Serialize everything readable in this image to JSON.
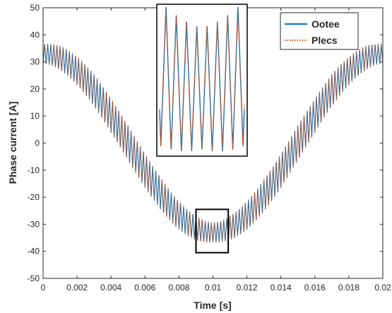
{
  "chart_data": {
    "type": "line",
    "title": "",
    "xlabel": "Time [s]",
    "ylabel": "Phase current [A]",
    "xlim": [
      0,
      0.02
    ],
    "ylim": [
      -50,
      50
    ],
    "xticks": [
      0,
      0.002,
      0.004,
      0.006,
      0.008,
      0.01,
      0.012,
      0.014,
      0.016,
      0.018,
      0.02
    ],
    "xtick_labels": [
      "0",
      "0.002",
      "0.004",
      "0.006",
      "0.008",
      "0.01",
      "0.012",
      "0.014",
      "0.016",
      "0.018",
      "0.02"
    ],
    "yticks": [
      -50,
      -40,
      -30,
      -20,
      -10,
      0,
      10,
      20,
      30,
      40,
      50
    ],
    "ytick_labels": [
      "-50",
      "-40",
      "-30",
      "-20",
      "-10",
      "0",
      "10",
      "20",
      "30",
      "40",
      "50"
    ],
    "grid": false,
    "legend": "top-right",
    "signal": {
      "fundamental_amplitude": 33,
      "fundamental_period": 0.02,
      "ripple_amplitude": 6.5,
      "ripple_frequency": 5500
    },
    "series": [
      {
        "name": "Ootee",
        "color": "#0072BD",
        "style": "solid"
      },
      {
        "name": "Plecs",
        "color": "#D95319",
        "style": "dotted"
      }
    ],
    "zoom_box": {
      "x": [
        0.009,
        0.0109
      ],
      "y": [
        -40.5,
        -24.5
      ]
    },
    "inset": {
      "x": [
        0.00925,
        0.01075
      ]
    }
  }
}
